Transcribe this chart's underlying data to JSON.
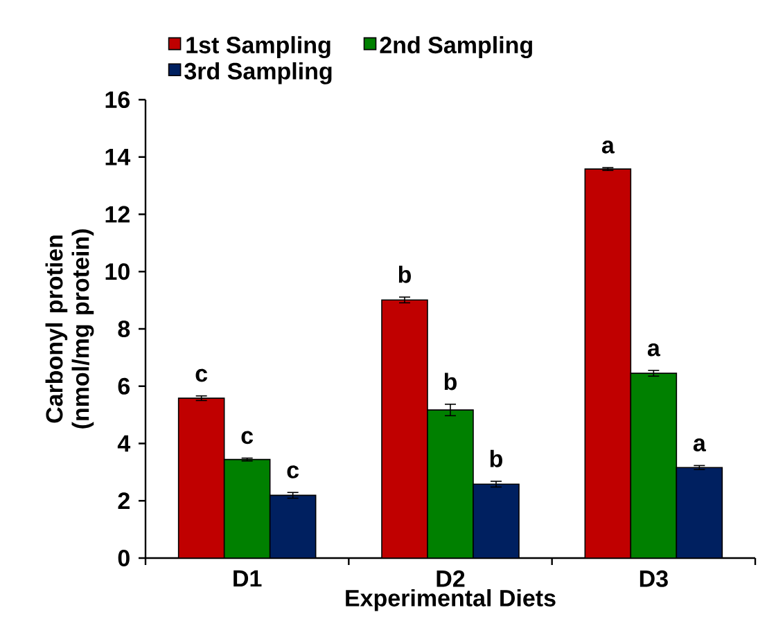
{
  "chart_data": {
    "type": "bar",
    "xlabel": "Experimental Diets",
    "ylabel": "Carbonyl protien (nmol/mg protein)",
    "categories": [
      "D1",
      "D2",
      "D3"
    ],
    "series": [
      {
        "name": "1st Sampling",
        "color": "#c00000",
        "values": [
          5.58,
          9.01,
          13.58
        ],
        "errors": [
          0.08,
          0.1,
          0.05
        ],
        "value_labels": [
          "c",
          "b",
          "a"
        ]
      },
      {
        "name": "2nd Sampling",
        "color": "#008000",
        "values": [
          3.44,
          5.17,
          6.45
        ],
        "errors": [
          0.05,
          0.2,
          0.1
        ],
        "value_labels": [
          "c",
          "b",
          "a"
        ]
      },
      {
        "name": "3rd Sampling",
        "color": "#002060",
        "values": [
          2.19,
          2.58,
          3.16
        ],
        "errors": [
          0.1,
          0.1,
          0.07
        ],
        "value_labels": [
          "c",
          "b",
          "a"
        ]
      }
    ],
    "ylim": [
      0,
      16
    ],
    "yticks": [
      0,
      2,
      4,
      6,
      8,
      10,
      12,
      14,
      16
    ],
    "grid": false,
    "legend": "top"
  }
}
